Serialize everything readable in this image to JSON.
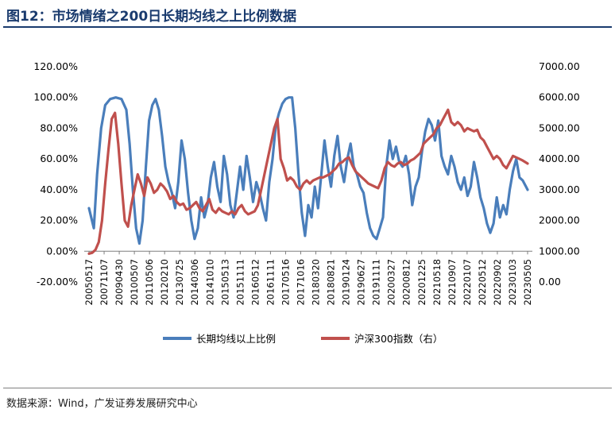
{
  "header": {
    "title": "图12：市场情绪之200日长期均线之上比例数据"
  },
  "footer": {
    "source": "数据来源：Wind，广发证券发展研究中心"
  },
  "chart_data": {
    "type": "line",
    "title": "图12：市场情绪之200日长期均线之上比例数据",
    "y_left": {
      "ticks": [
        "120.00%",
        "100.00%",
        "80.00%",
        "60.00%",
        "40.00%",
        "20.00%",
        "0.00%",
        "-20.00%"
      ],
      "range": [
        -20,
        120
      ],
      "unit": "%"
    },
    "y_right": {
      "ticks": [
        "7000.00",
        "6000.00",
        "5000.00",
        "4000.00",
        "3000.00",
        "2000.00",
        "1000.00",
        "0.00"
      ],
      "range": [
        0,
        7000
      ]
    },
    "x_ticks": [
      "20050517",
      "20071107",
      "20090430",
      "20100507",
      "20110506",
      "20120210",
      "20130725",
      "20140306",
      "20141010",
      "20150513",
      "20151111",
      "20160512",
      "20161111",
      "20170516",
      "20171016",
      "20180320",
      "20180821",
      "20190124",
      "20190627",
      "20191111",
      "20200327",
      "20200812",
      "20201225",
      "20210518",
      "20210907",
      "20220107",
      "20220512",
      "20220902",
      "20230103",
      "20230505"
    ],
    "grid": false,
    "legend_position": "bottom",
    "series": [
      {
        "name": "长期均线以上比例",
        "axis": "left",
        "color": "#4a7ebb",
        "values": [
          [
            0.0,
            28
          ],
          [
            0.6,
            15
          ],
          [
            1.0,
            50
          ],
          [
            1.5,
            80
          ],
          [
            2.0,
            95
          ],
          [
            2.6,
            99
          ],
          [
            3.3,
            100
          ],
          [
            4.0,
            99
          ],
          [
            4.6,
            92
          ],
          [
            5.0,
            70
          ],
          [
            5.4,
            40
          ],
          [
            5.8,
            15
          ],
          [
            6.2,
            5
          ],
          [
            6.6,
            20
          ],
          [
            7.0,
            55
          ],
          [
            7.4,
            85
          ],
          [
            7.8,
            95
          ],
          [
            8.2,
            99
          ],
          [
            8.6,
            92
          ],
          [
            9.0,
            75
          ],
          [
            9.4,
            55
          ],
          [
            9.8,
            45
          ],
          [
            10.2,
            38
          ],
          [
            10.6,
            28
          ],
          [
            11.0,
            45
          ],
          [
            11.4,
            72
          ],
          [
            11.8,
            60
          ],
          [
            12.2,
            38
          ],
          [
            12.6,
            20
          ],
          [
            13.0,
            8
          ],
          [
            13.4,
            15
          ],
          [
            13.8,
            35
          ],
          [
            14.2,
            22
          ],
          [
            14.6,
            30
          ],
          [
            15.0,
            48
          ],
          [
            15.4,
            58
          ],
          [
            15.8,
            42
          ],
          [
            16.2,
            32
          ],
          [
            16.6,
            62
          ],
          [
            17.0,
            50
          ],
          [
            17.4,
            30
          ],
          [
            17.8,
            22
          ],
          [
            18.2,
            38
          ],
          [
            18.6,
            55
          ],
          [
            19.0,
            40
          ],
          [
            19.4,
            62
          ],
          [
            19.8,
            48
          ],
          [
            20.2,
            32
          ],
          [
            20.6,
            45
          ],
          [
            21.0,
            38
          ],
          [
            21.4,
            28
          ],
          [
            21.8,
            20
          ],
          [
            22.2,
            45
          ],
          [
            22.6,
            60
          ],
          [
            23.0,
            82
          ],
          [
            23.4,
            90
          ],
          [
            23.8,
            96
          ],
          [
            24.2,
            99
          ],
          [
            24.6,
            100
          ],
          [
            25.0,
            100
          ],
          [
            25.4,
            80
          ],
          [
            25.8,
            50
          ],
          [
            26.2,
            25
          ],
          [
            26.6,
            10
          ],
          [
            27.0,
            30
          ],
          [
            27.4,
            22
          ],
          [
            27.8,
            42
          ],
          [
            28.2,
            28
          ],
          [
            28.6,
            50
          ],
          [
            29.0,
            72
          ],
          [
            29.4,
            55
          ],
          [
            29.8,
            42
          ],
          [
            30.2,
            62
          ],
          [
            30.6,
            75
          ],
          [
            31.0,
            55
          ],
          [
            31.4,
            45
          ],
          [
            31.8,
            60
          ],
          [
            32.2,
            70
          ],
          [
            32.6,
            55
          ],
          [
            33.0,
            50
          ],
          [
            33.4,
            42
          ],
          [
            33.8,
            38
          ],
          [
            34.2,
            25
          ],
          [
            34.6,
            15
          ],
          [
            35.0,
            10
          ],
          [
            35.4,
            8
          ],
          [
            35.8,
            15
          ],
          [
            36.2,
            22
          ],
          [
            36.6,
            55
          ],
          [
            37.0,
            72
          ],
          [
            37.4,
            60
          ],
          [
            37.8,
            68
          ],
          [
            38.2,
            58
          ],
          [
            38.6,
            55
          ],
          [
            39.0,
            62
          ],
          [
            39.4,
            50
          ],
          [
            39.8,
            30
          ],
          [
            40.2,
            42
          ],
          [
            40.6,
            48
          ],
          [
            41.0,
            65
          ],
          [
            41.4,
            78
          ],
          [
            41.8,
            86
          ],
          [
            42.2,
            82
          ],
          [
            42.6,
            72
          ],
          [
            43.0,
            85
          ],
          [
            43.4,
            62
          ],
          [
            43.8,
            55
          ],
          [
            44.2,
            50
          ],
          [
            44.6,
            62
          ],
          [
            45.0,
            55
          ],
          [
            45.4,
            45
          ],
          [
            45.8,
            40
          ],
          [
            46.2,
            48
          ],
          [
            46.6,
            36
          ],
          [
            47.0,
            42
          ],
          [
            47.4,
            58
          ],
          [
            47.8,
            48
          ],
          [
            48.2,
            35
          ],
          [
            48.6,
            28
          ],
          [
            49.0,
            18
          ],
          [
            49.4,
            12
          ],
          [
            49.8,
            18
          ],
          [
            50.2,
            35
          ],
          [
            50.6,
            22
          ],
          [
            51.0,
            30
          ],
          [
            51.4,
            24
          ],
          [
            51.8,
            40
          ],
          [
            52.2,
            52
          ],
          [
            52.6,
            60
          ],
          [
            53.0,
            48
          ],
          [
            53.4,
            46
          ],
          [
            53.8,
            42
          ],
          [
            54.0,
            40
          ]
        ]
      },
      {
        "name": "沪深300指数（右）",
        "axis": "right",
        "color": "#c0504d",
        "values": [
          [
            0.0,
            920
          ],
          [
            0.4,
            950
          ],
          [
            0.8,
            1050
          ],
          [
            1.2,
            1300
          ],
          [
            1.6,
            2000
          ],
          [
            2.0,
            3200
          ],
          [
            2.4,
            4300
          ],
          [
            2.8,
            5300
          ],
          [
            3.2,
            5500
          ],
          [
            3.6,
            4500
          ],
          [
            4.0,
            3200
          ],
          [
            4.4,
            2000
          ],
          [
            4.8,
            1800
          ],
          [
            5.2,
            2500
          ],
          [
            5.6,
            3000
          ],
          [
            6.0,
            3500
          ],
          [
            6.4,
            3200
          ],
          [
            6.8,
            2800
          ],
          [
            7.2,
            3400
          ],
          [
            7.6,
            3200
          ],
          [
            8.0,
            2900
          ],
          [
            8.4,
            3000
          ],
          [
            8.8,
            3200
          ],
          [
            9.2,
            3100
          ],
          [
            9.6,
            2950
          ],
          [
            10.0,
            2700
          ],
          [
            10.4,
            2800
          ],
          [
            10.8,
            2600
          ],
          [
            11.2,
            2500
          ],
          [
            11.6,
            2550
          ],
          [
            12.0,
            2350
          ],
          [
            12.4,
            2400
          ],
          [
            12.8,
            2500
          ],
          [
            13.2,
            2600
          ],
          [
            13.6,
            2400
          ],
          [
            14.0,
            2300
          ],
          [
            14.4,
            2500
          ],
          [
            14.8,
            2700
          ],
          [
            15.2,
            2350
          ],
          [
            15.6,
            2250
          ],
          [
            16.0,
            2400
          ],
          [
            16.4,
            2300
          ],
          [
            16.8,
            2250
          ],
          [
            17.2,
            2200
          ],
          [
            17.6,
            2300
          ],
          [
            18.0,
            2200
          ],
          [
            18.4,
            2400
          ],
          [
            18.8,
            2500
          ],
          [
            19.2,
            2300
          ],
          [
            19.6,
            2200
          ],
          [
            20.0,
            2250
          ],
          [
            20.4,
            2300
          ],
          [
            20.8,
            2500
          ],
          [
            21.2,
            3000
          ],
          [
            21.6,
            3500
          ],
          [
            22.0,
            4000
          ],
          [
            22.4,
            4500
          ],
          [
            22.8,
            5000
          ],
          [
            23.2,
            5300
          ],
          [
            23.6,
            4000
          ],
          [
            24.0,
            3700
          ],
          [
            24.4,
            3300
          ],
          [
            24.8,
            3400
          ],
          [
            25.2,
            3300
          ],
          [
            25.6,
            3100
          ],
          [
            26.0,
            3000
          ],
          [
            26.4,
            3200
          ],
          [
            26.8,
            3300
          ],
          [
            27.2,
            3200
          ],
          [
            27.6,
            3300
          ],
          [
            28.0,
            3350
          ],
          [
            28.4,
            3400
          ],
          [
            28.8,
            3400
          ],
          [
            29.2,
            3450
          ],
          [
            29.6,
            3500
          ],
          [
            30.0,
            3600
          ],
          [
            30.4,
            3700
          ],
          [
            30.8,
            3850
          ],
          [
            31.2,
            3900
          ],
          [
            31.6,
            4000
          ],
          [
            32.0,
            4050
          ],
          [
            32.4,
            3800
          ],
          [
            32.8,
            3600
          ],
          [
            33.2,
            3500
          ],
          [
            33.6,
            3400
          ],
          [
            34.0,
            3300
          ],
          [
            34.4,
            3200
          ],
          [
            34.8,
            3150
          ],
          [
            35.2,
            3100
          ],
          [
            35.6,
            3050
          ],
          [
            36.0,
            3300
          ],
          [
            36.4,
            3700
          ],
          [
            36.8,
            3900
          ],
          [
            37.2,
            3800
          ],
          [
            37.6,
            3750
          ],
          [
            38.0,
            3850
          ],
          [
            38.4,
            3900
          ],
          [
            38.8,
            3800
          ],
          [
            39.2,
            3850
          ],
          [
            39.6,
            3950
          ],
          [
            40.0,
            4000
          ],
          [
            40.4,
            4100
          ],
          [
            40.8,
            4200
          ],
          [
            41.2,
            4500
          ],
          [
            41.6,
            4600
          ],
          [
            42.0,
            4700
          ],
          [
            42.4,
            4800
          ],
          [
            42.8,
            5000
          ],
          [
            43.2,
            5100
          ],
          [
            43.6,
            5300
          ],
          [
            44.0,
            5500
          ],
          [
            44.2,
            5600
          ],
          [
            44.6,
            5200
          ],
          [
            45.0,
            5100
          ],
          [
            45.4,
            5200
          ],
          [
            45.8,
            5100
          ],
          [
            46.2,
            4900
          ],
          [
            46.6,
            5000
          ],
          [
            47.0,
            4950
          ],
          [
            47.4,
            4900
          ],
          [
            47.8,
            4950
          ],
          [
            48.2,
            4700
          ],
          [
            48.6,
            4600
          ],
          [
            49.0,
            4400
          ],
          [
            49.4,
            4200
          ],
          [
            49.8,
            4000
          ],
          [
            50.2,
            4100
          ],
          [
            50.6,
            4000
          ],
          [
            51.0,
            3800
          ],
          [
            51.4,
            3700
          ],
          [
            51.8,
            3900
          ],
          [
            52.2,
            4100
          ],
          [
            52.6,
            4050
          ],
          [
            53.0,
            4000
          ],
          [
            53.4,
            3950
          ],
          [
            54.0,
            3850
          ]
        ]
      }
    ]
  }
}
